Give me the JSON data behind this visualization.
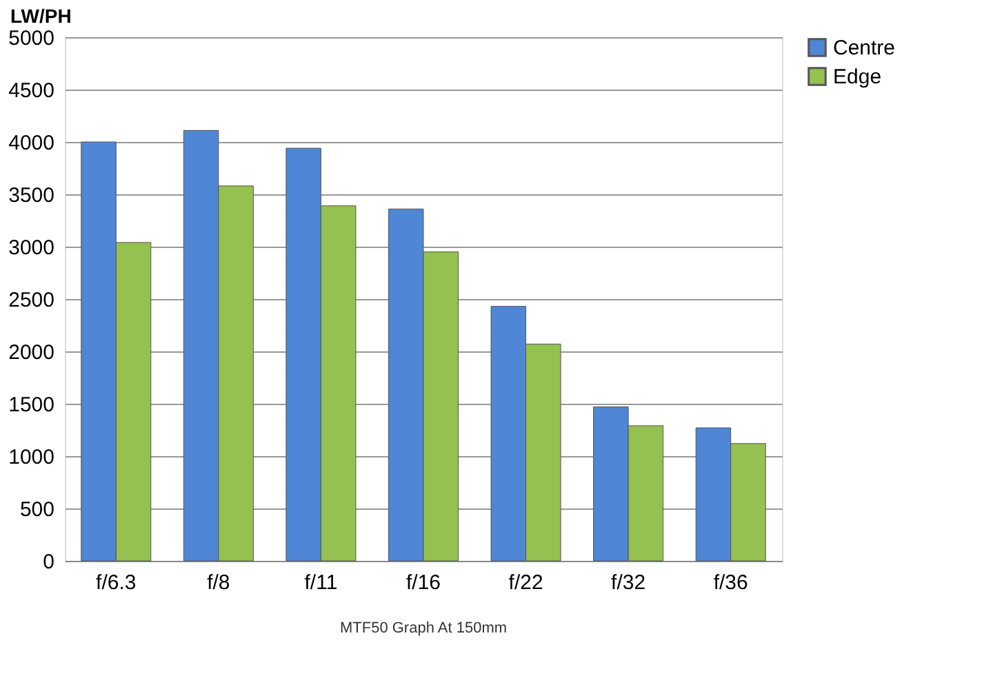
{
  "chart_data": {
    "type": "bar",
    "ylabel": "LW/PH",
    "categories": [
      "f/6.3",
      "f/8",
      "f/11",
      "f/16",
      "f/22",
      "f/32",
      "f/36"
    ],
    "series": [
      {
        "name": "Centre",
        "color": "#4f86d6",
        "values": [
          4000,
          4110,
          3940,
          3360,
          2430,
          1470,
          1270
        ]
      },
      {
        "name": "Edge",
        "color": "#94c150",
        "values": [
          3040,
          3580,
          3390,
          2950,
          2070,
          1290,
          1120
        ]
      }
    ],
    "ylim": [
      0,
      5000
    ],
    "yticks": [
      0,
      500,
      1000,
      1500,
      2000,
      2500,
      3000,
      3500,
      4000,
      4500,
      5000
    ],
    "grid": "y",
    "legend": "right",
    "annotations": [
      "MTF50 Graph At 150mm"
    ]
  }
}
